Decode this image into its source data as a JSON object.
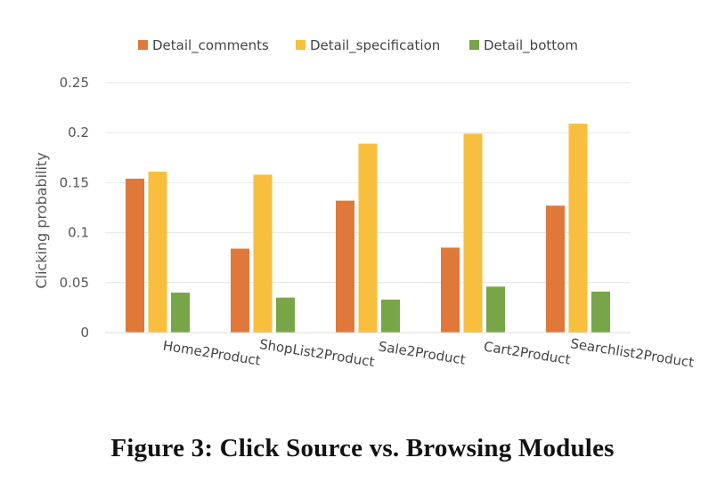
{
  "caption": "Figure 3: Click Source vs. Browsing Modules",
  "chart_data": {
    "type": "bar",
    "categories": [
      "Home2Product",
      "ShopList2Product",
      "Sale2Product",
      "Cart2Product",
      "Searchlist2Product"
    ],
    "series": [
      {
        "name": "Detail_comments",
        "color": "#e0783a",
        "values": [
          0.154,
          0.084,
          0.132,
          0.085,
          0.127
        ]
      },
      {
        "name": "Detail_specification",
        "color": "#f7bf3d",
        "values": [
          0.161,
          0.158,
          0.189,
          0.199,
          0.209
        ]
      },
      {
        "name": "Detail_bottom",
        "color": "#77a548",
        "values": [
          0.04,
          0.035,
          0.033,
          0.046,
          0.041
        ]
      }
    ],
    "title": "",
    "xlabel": "",
    "ylabel": "Clicking probability",
    "ylim": [
      0,
      0.25
    ],
    "yticks": [
      "0",
      "0.05",
      "0.1",
      "0.15",
      "0.2",
      "0.25"
    ],
    "grid": true,
    "legend": "top-center"
  }
}
